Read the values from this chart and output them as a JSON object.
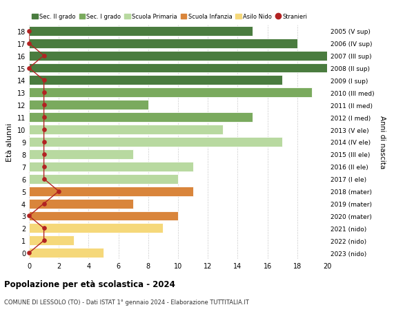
{
  "ages": [
    18,
    17,
    16,
    15,
    14,
    13,
    12,
    11,
    10,
    9,
    8,
    7,
    6,
    5,
    4,
    3,
    2,
    1,
    0
  ],
  "right_labels": [
    "2005 (V sup)",
    "2006 (IV sup)",
    "2007 (III sup)",
    "2008 (II sup)",
    "2009 (I sup)",
    "2010 (III med)",
    "2011 (II med)",
    "2012 (I med)",
    "2013 (V ele)",
    "2014 (IV ele)",
    "2015 (III ele)",
    "2016 (II ele)",
    "2017 (I ele)",
    "2018 (mater)",
    "2019 (mater)",
    "2020 (mater)",
    "2021 (nido)",
    "2022 (nido)",
    "2023 (nido)"
  ],
  "bar_values": [
    15,
    18,
    20,
    20,
    17,
    19,
    8,
    15,
    13,
    17,
    7,
    11,
    10,
    11,
    7,
    10,
    9,
    3,
    5
  ],
  "bar_colors": [
    "#4a7c3f",
    "#4a7c3f",
    "#4a7c3f",
    "#4a7c3f",
    "#4a7c3f",
    "#7aaa5e",
    "#7aaa5e",
    "#7aaa5e",
    "#b8d9a0",
    "#b8d9a0",
    "#b8d9a0",
    "#b8d9a0",
    "#b8d9a0",
    "#d9853b",
    "#d9853b",
    "#d9853b",
    "#f5d87a",
    "#f5d87a",
    "#f5d87a"
  ],
  "stranieri_values": [
    0,
    0,
    1,
    0,
    1,
    1,
    1,
    1,
    1,
    1,
    1,
    1,
    1,
    2,
    1,
    0,
    1,
    1,
    0
  ],
  "title": "Popolazione per età scolastica - 2024",
  "subtitle": "COMUNE DI LESSOLO (TO) - Dati ISTAT 1° gennaio 2024 - Elaborazione TUTTITALIA.IT",
  "ylabel": "Età alunni",
  "right_ylabel": "Anni di nascita",
  "xlim": [
    0,
    20
  ],
  "xticks": [
    0,
    2,
    4,
    6,
    8,
    10,
    12,
    14,
    16,
    18,
    20
  ],
  "legend_labels": [
    "Sec. II grado",
    "Sec. I grado",
    "Scuola Primaria",
    "Scuola Infanzia",
    "Asilo Nido",
    "Stranieri"
  ],
  "legend_colors": [
    "#4a7c3f",
    "#7aaa5e",
    "#b8d9a0",
    "#d9853b",
    "#f5d87a",
    "#b22222"
  ],
  "bg_color": "#ffffff",
  "grid_color": "#cccccc"
}
